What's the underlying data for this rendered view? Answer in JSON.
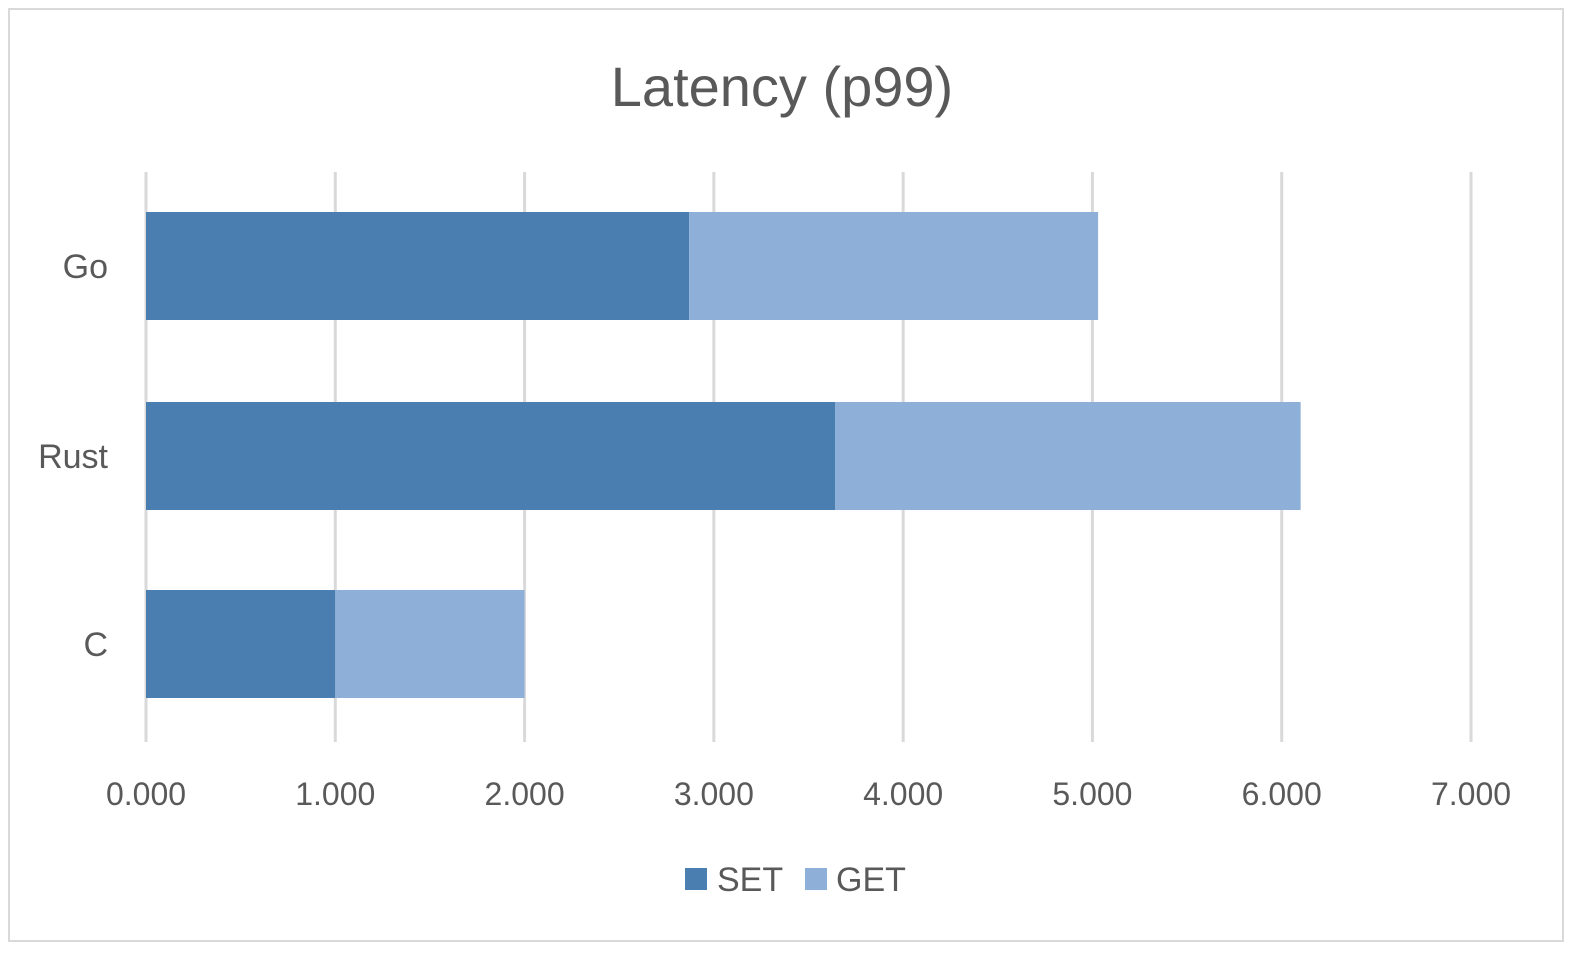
{
  "chart_data": {
    "type": "bar",
    "orientation": "horizontal",
    "stacked": true,
    "title": "Latency (p99)",
    "categories": [
      "Go",
      "Rust",
      "C"
    ],
    "series": [
      {
        "name": "SET",
        "values": [
          2.87,
          3.64,
          1.0
        ],
        "color": "#4a7eb0"
      },
      {
        "name": "GET",
        "values": [
          2.16,
          2.46,
          1.0
        ],
        "color": "#8eb0d8"
      }
    ],
    "xlim": [
      0,
      7
    ],
    "x_ticks": [
      "0.000",
      "1.000",
      "2.000",
      "3.000",
      "4.000",
      "5.000",
      "6.000",
      "7.000"
    ],
    "grid": "vertical",
    "legend": "bottom"
  }
}
